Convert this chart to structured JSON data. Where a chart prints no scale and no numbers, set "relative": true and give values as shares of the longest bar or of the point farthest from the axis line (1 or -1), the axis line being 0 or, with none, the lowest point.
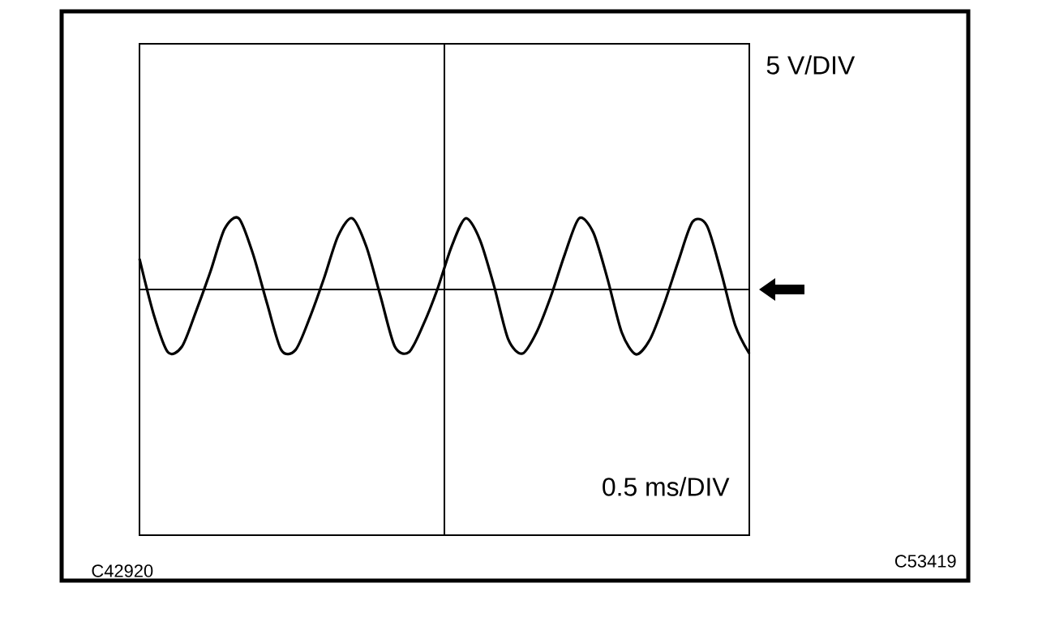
{
  "chart_data": {
    "type": "line",
    "relative": true,
    "color": "#000000",
    "marker": "none",
    "line_style": "solid",
    "categories": [
      null,
      null,
      null,
      null,
      null,
      null,
      null,
      null,
      null,
      null,
      null,
      null,
      null,
      null,
      null,
      null,
      null,
      null,
      null,
      null,
      null,
      null,
      null,
      null,
      null,
      null,
      null,
      null,
      null,
      null,
      null,
      null,
      null,
      null,
      null,
      null,
      null,
      null,
      null,
      null,
      null,
      null,
      null,
      null
    ],
    "values": [
      0.43,
      -0.35,
      -0.88,
      -0.8,
      -0.3,
      0.25,
      0.85,
      1.0,
      0.5,
      -0.2,
      -0.85,
      -0.85,
      -0.4,
      0.15,
      0.75,
      1.0,
      0.6,
      -0.1,
      -0.8,
      -0.88,
      -0.5,
      0.0,
      0.6,
      1.0,
      0.7,
      0.05,
      -0.7,
      -0.9,
      -0.6,
      -0.1,
      0.5,
      1.0,
      0.8,
      0.15,
      -0.6,
      -0.91,
      -0.7,
      -0.2,
      0.4,
      0.95,
      0.9,
      0.25,
      -0.5,
      -0.9
    ],
    "ref_lines": [
      {
        "axis": "y",
        "value": 0
      }
    ],
    "annotations": [
      "5 V/DIV",
      "0.5 ms/DIV",
      "C42920",
      "C53419"
    ]
  }
}
